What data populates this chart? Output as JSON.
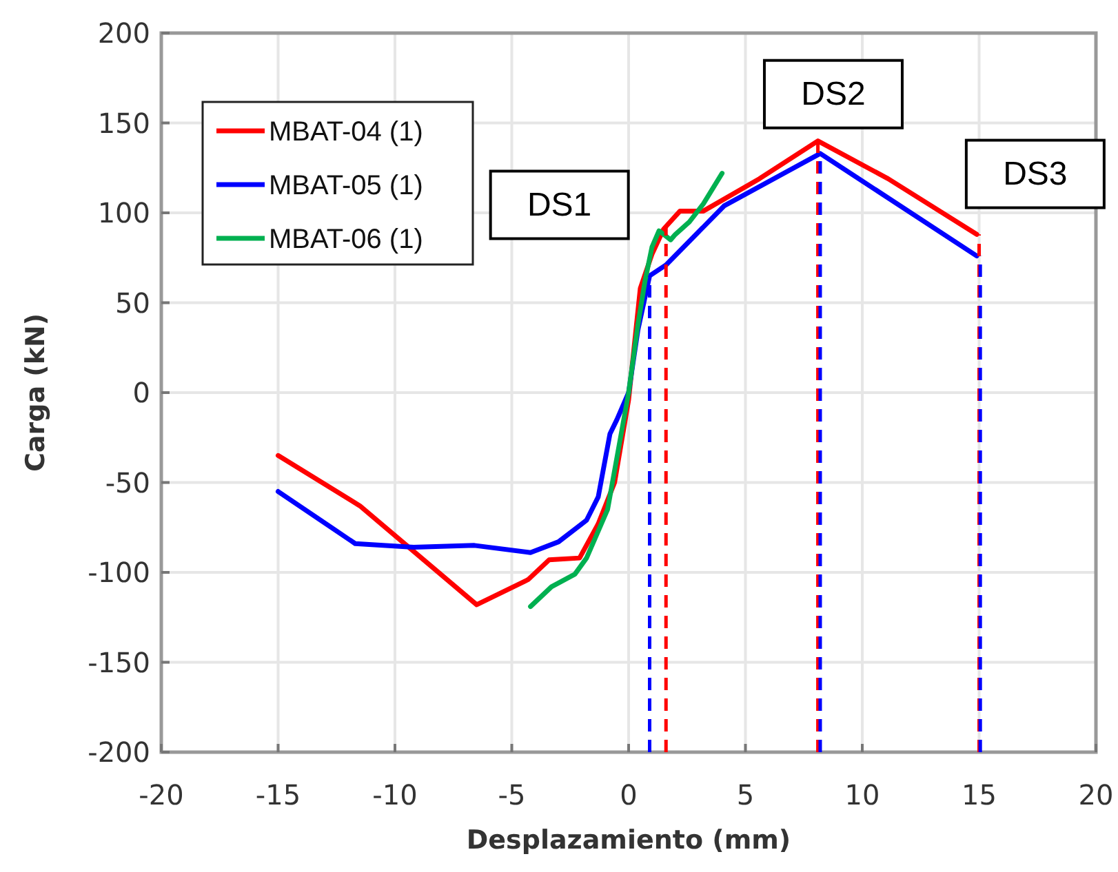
{
  "chart_data": {
    "type": "line",
    "xlabel": "Desplazamiento (mm)",
    "ylabel": "Carga (kN)",
    "xlim": [
      -20,
      20
    ],
    "xticks": [
      -20,
      -15,
      -10,
      -5,
      0,
      5,
      10,
      15,
      20
    ],
    "ylim": [
      -200,
      200
    ],
    "yticks": [
      -200,
      -150,
      -100,
      -50,
      0,
      50,
      100,
      150,
      200
    ],
    "grid": true,
    "legend": "top left",
    "line_style": "solid",
    "marker": "none",
    "series": [
      {
        "name": "MBAT-04 (1)",
        "color": "#ff0000",
        "x": [
          -15,
          -11.5,
          -6.5,
          -4.3,
          -3.4,
          -2.1,
          -1.3,
          -0.6,
          0,
          0.5,
          1,
          1.5,
          2.2,
          3.2,
          5.6,
          8.1,
          11.1,
          14.9
        ],
        "values": [
          -35,
          -63,
          -118,
          -104,
          -93,
          -92,
          -73,
          -50,
          -4,
          58,
          77,
          91,
          101,
          101,
          119,
          140,
          119,
          88
        ]
      },
      {
        "name": "MBAT-05 (1)",
        "color": "#0000ff",
        "x": [
          -15,
          -11.7,
          -9.2,
          -6.6,
          -4.2,
          -3,
          -1.8,
          -1.3,
          -0.8,
          -0.5,
          0,
          0.4,
          0.9,
          1.6,
          4.1,
          8.2,
          14.9
        ],
        "values": [
          -55,
          -84,
          -86,
          -85,
          -89,
          -83,
          -71,
          -58,
          -23,
          -15,
          0,
          35,
          65,
          71,
          104,
          133,
          76
        ]
      },
      {
        "name": "MBAT-06 (1)",
        "color": "#00b050",
        "x": [
          -4.2,
          -3.3,
          -2.3,
          -1.8,
          -0.9,
          0,
          0.4,
          0.7,
          1,
          1.3,
          1.8,
          2,
          2.6,
          3.2,
          4
        ],
        "values": [
          -119,
          -108,
          -101,
          -92,
          -65,
          0,
          38,
          62,
          81,
          90,
          85,
          88,
          95,
          105,
          122
        ]
      }
    ],
    "ref_lines": [
      {
        "axis": "x",
        "value": 0.9,
        "color": "#0000ff",
        "line_style": "dashed"
      },
      {
        "axis": "x",
        "value": 1.6,
        "color": "#ff0000",
        "line_style": "dashed"
      },
      {
        "axis": "x",
        "value": 8.1,
        "color": "#ff0000",
        "line_style": "dashed"
      },
      {
        "axis": "x",
        "value": 8.2,
        "color": "#0000ff",
        "line_style": "dashed"
      },
      {
        "axis": "x",
        "value": 15,
        "color": "#ff0000",
        "line_style": "dashed"
      },
      {
        "axis": "x",
        "value": 15.05,
        "color": "#0000ff",
        "line_style": "dashed"
      }
    ],
    "annotations": [
      "DS1",
      "DS2",
      "DS3"
    ]
  }
}
